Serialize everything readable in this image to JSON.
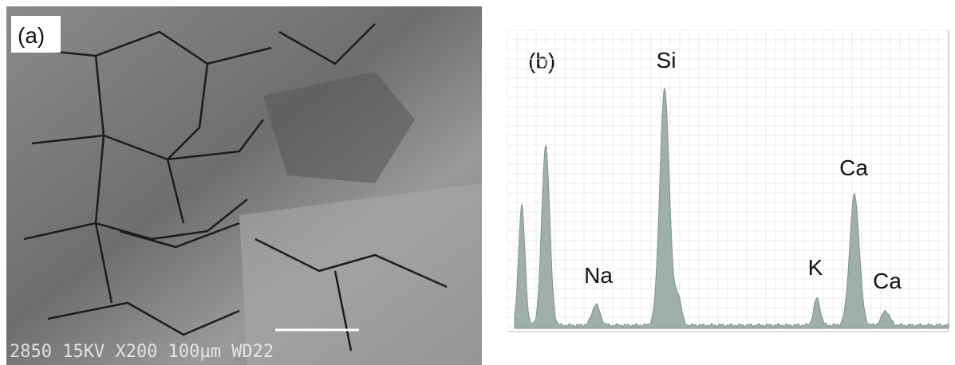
{
  "panels": [
    {
      "label": "(a)",
      "scale_bar": "2850  15KV  X200  100µm  WD22"
    },
    {
      "label": "(b)",
      "peaks": [
        "Na",
        "Si",
        "K",
        "Ca",
        "Ca"
      ]
    }
  ]
}
